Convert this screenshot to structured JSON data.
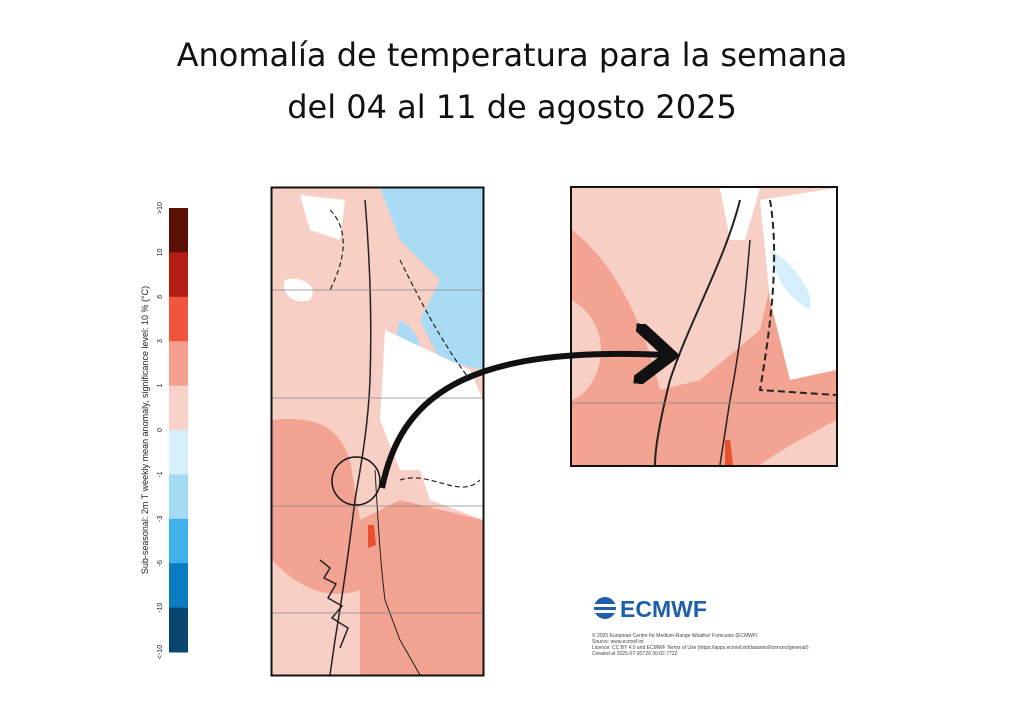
{
  "header": {
    "title_lines": [
      "Anomalía de temperatura para la semana",
      "del 04 al 11 de agosto 2025"
    ]
  },
  "legend": {
    "axis_label": "Sub-seasonal: 2m T weekly mean anomaly, significance level: 10 % (°C)",
    "labels": [
      ">10",
      "10",
      "6",
      "3",
      "1",
      "0",
      "-1",
      "-3",
      "-6",
      "-10",
      "<-10"
    ],
    "colors": [
      "#5c1008",
      "#b41c14",
      "#f2553d",
      "#f5a08f",
      "#f9d1c8",
      "#d6eefa",
      "#a4dbf4",
      "#40b1ea",
      "#0b7cc1",
      "#08476f"
    ]
  },
  "logo": {
    "text": "ECMWF"
  },
  "credits": {
    "lines": [
      "© 2025 European Centre for Medium-Range Weather Forecasts (ECMWF)",
      "Source: www.ecmwf.int",
      "Licence: CC BY 4.0 and ECMWF Terms of Use (https://apps.ecmwf.int/datasets/licences/general/)",
      "Created at 2025-07-30T20:30:02.772Z"
    ]
  }
}
